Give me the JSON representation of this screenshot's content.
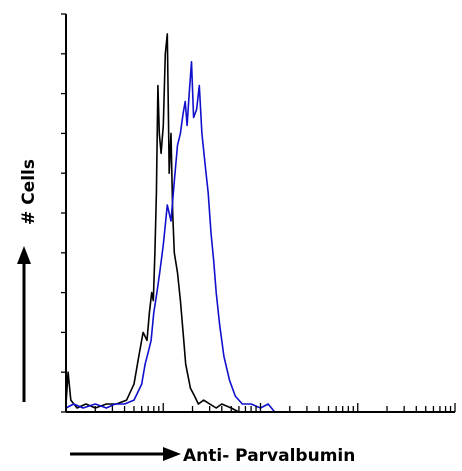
{
  "chart_data": {
    "type": "line",
    "title": "",
    "xlabel": "Anti- Parvalbumin",
    "ylabel": "# Cells",
    "x_scale": "log",
    "xlim": [
      1,
      10000
    ],
    "ylim": [
      0,
      100
    ],
    "grid": false,
    "legend": "none",
    "series": [
      {
        "color": "#000000",
        "x": [
          1,
          1.05,
          1.12,
          1.3,
          1.6,
          2,
          2.6,
          3.3,
          4.2,
          5,
          5.6,
          6.2,
          6.8,
          7.2,
          7.6,
          7.9,
          8.2,
          8.5,
          8.8,
          9.1,
          9.5,
          10,
          10.5,
          11,
          11.5,
          12,
          12.5,
          13,
          14,
          15,
          16,
          17,
          19,
          21,
          23,
          26,
          30,
          35,
          40,
          50,
          60
        ],
        "y": [
          2,
          10,
          3,
          1,
          2,
          1,
          2,
          2,
          3,
          7,
          14,
          20,
          18,
          25,
          30,
          28,
          40,
          55,
          82,
          70,
          65,
          72,
          90,
          95,
          60,
          70,
          50,
          40,
          35,
          28,
          20,
          12,
          6,
          4,
          2,
          3,
          2,
          1,
          2,
          1,
          0
        ]
      },
      {
        "color": "#1010cc",
        "x": [
          1,
          1.2,
          1.5,
          2,
          2.6,
          3.2,
          4,
          5,
          6,
          6.5,
          7,
          7.5,
          8,
          8.6,
          9.2,
          10,
          11,
          12,
          13,
          14,
          15,
          16,
          16.8,
          17.6,
          18.5,
          19.5,
          20.5,
          22,
          23.5,
          25,
          27,
          29,
          31,
          33,
          35,
          38,
          42,
          48,
          55,
          65,
          80,
          100,
          120,
          140
        ],
        "y": [
          1,
          2,
          1,
          2,
          1,
          2,
          2,
          3,
          7,
          12,
          15,
          18,
          25,
          30,
          35,
          42,
          52,
          48,
          58,
          67,
          70,
          75,
          78,
          72,
          80,
          88,
          74,
          76,
          82,
          70,
          62,
          55,
          45,
          38,
          30,
          22,
          14,
          8,
          4,
          2,
          2,
          1,
          2,
          0
        ]
      }
    ]
  }
}
